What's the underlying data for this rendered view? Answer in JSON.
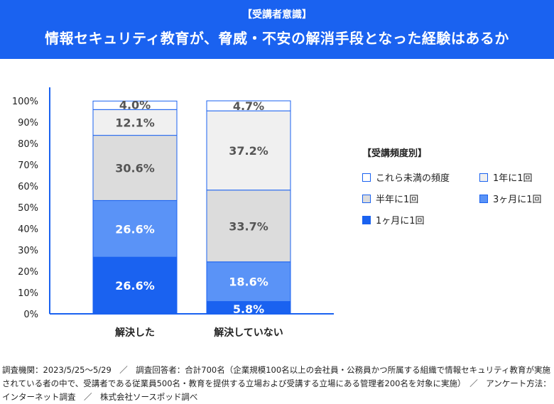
{
  "header": {
    "subtitle": "【受講者意識】",
    "title": "情報セキュリティ教育が、脅威・不安の解消手段となった経験はあるか"
  },
  "legend": {
    "title": "【受講頻度別】",
    "items": [
      "これら未満の頻度",
      "1年に1回",
      "半年に1回",
      "3ヶ月に1回",
      "1ヶ月に1回"
    ]
  },
  "colors": {
    "brand": "#1a62f0",
    "これら未満の頻度": "#ffffff",
    "1年に1回": "#f0f0f0",
    "半年に1回": "#dcdcdc",
    "3ヶ月に1回": "#5a93f7",
    "1ヶ月に1回": "#1a62f0"
  },
  "chart_data": {
    "type": "bar",
    "stacked": true,
    "categories": [
      "解決した",
      "解決していない"
    ],
    "series": [
      {
        "name": "1ヶ月に1回",
        "values": [
          26.6,
          5.8
        ],
        "labels": [
          "26.6%",
          "5.8%"
        ]
      },
      {
        "name": "3ヶ月に1回",
        "values": [
          26.6,
          18.6
        ],
        "labels": [
          "26.6%",
          "18.6%"
        ]
      },
      {
        "name": "半年に1回",
        "values": [
          30.6,
          33.7
        ],
        "labels": [
          "30.6%",
          "33.7%"
        ]
      },
      {
        "name": "1年に1回",
        "values": [
          12.1,
          37.2
        ],
        "labels": [
          "12.1%",
          "37.2%"
        ]
      },
      {
        "name": "これら未満の頻度",
        "values": [
          4.0,
          4.7
        ],
        "labels": [
          "4.0%",
          "4.7%"
        ]
      }
    ],
    "y_ticks": [
      "0%",
      "10%",
      "20%",
      "30%",
      "40%",
      "50%",
      "60%",
      "70%",
      "80%",
      "90%",
      "100%"
    ],
    "ylim": [
      0,
      100
    ],
    "legend_position": "right"
  },
  "footer": {
    "note": "調査機関：2023/5/25〜5/29　／　調査回答者：合計700名（企業規模100名以上の会社員・公務員かつ所属する組織で情報セキュリティ教育が実施されている者の中で、受講者である従業員500名・教育を提供する立場および受講する立場にある管理者200名を対象に実施）　／　アンケート方法：インターネット調査　／　株式会社ソースポッド調べ"
  }
}
